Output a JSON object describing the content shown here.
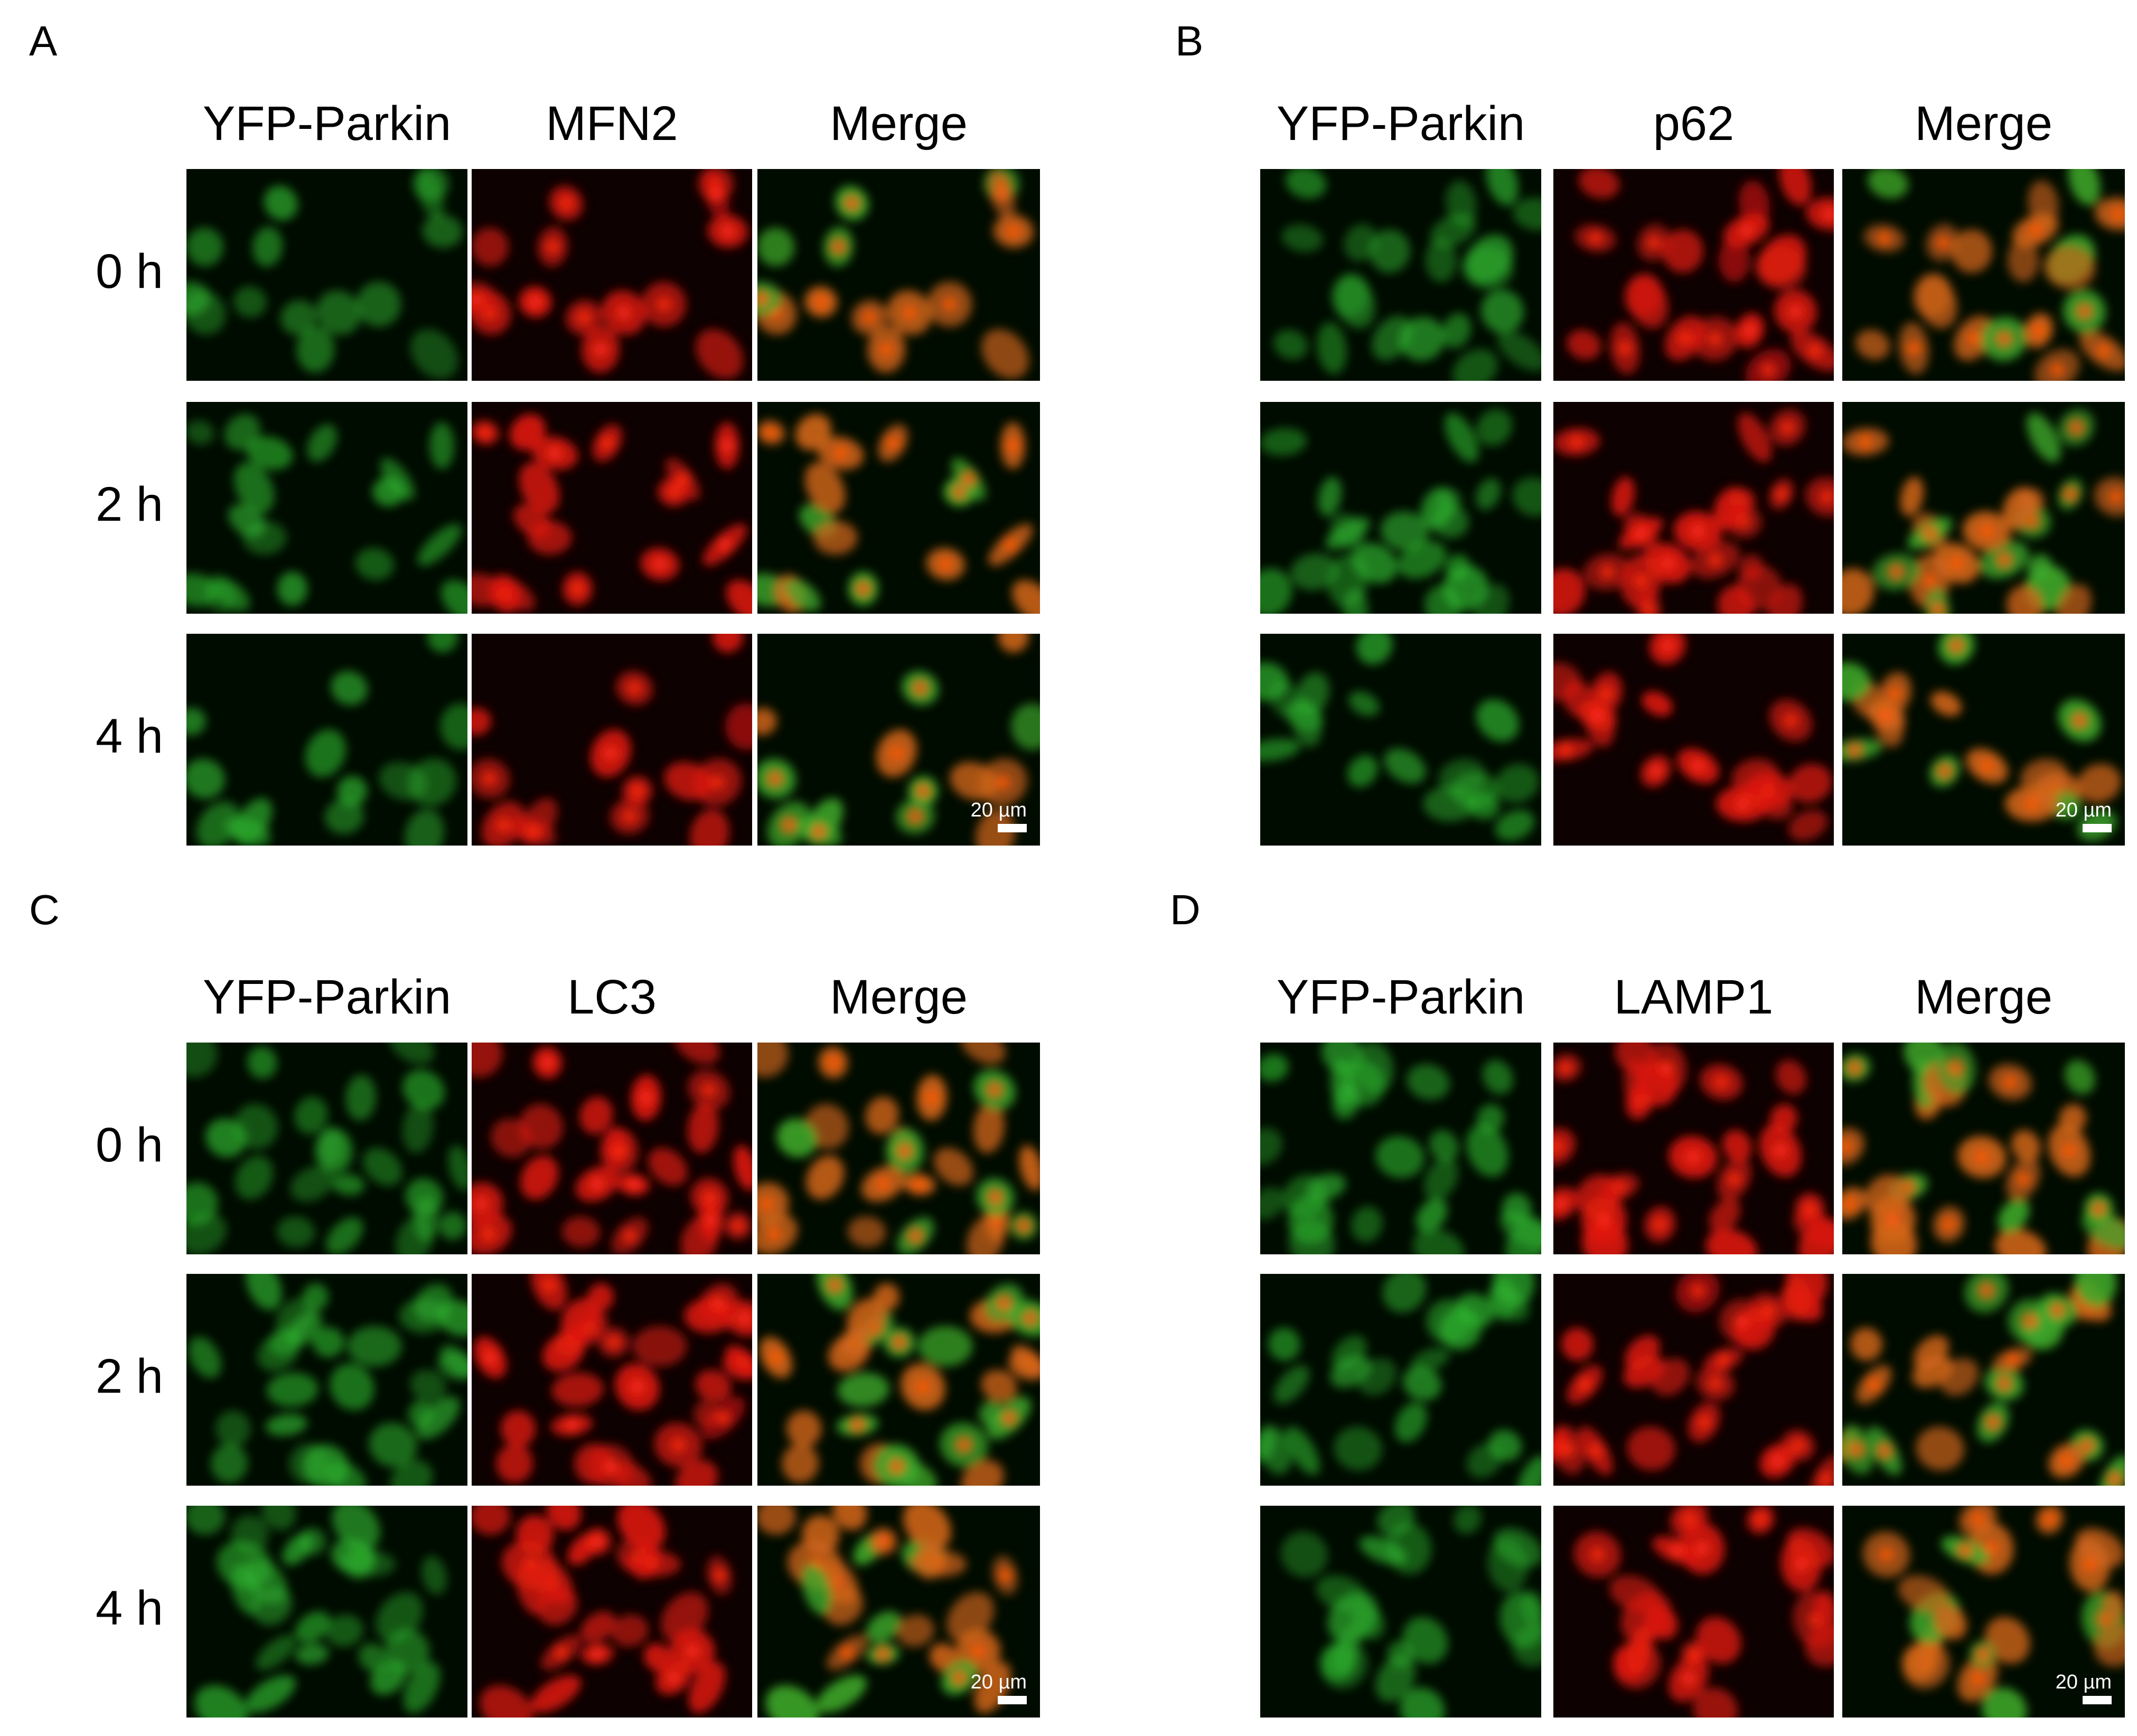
{
  "panels": [
    {
      "letter": "A",
      "columns": [
        "YFP-Parkin",
        "MFN2",
        "Merge"
      ],
      "rows": [
        "0 h",
        "2 h",
        "4 h"
      ],
      "scale_bar": "20 µm"
    },
    {
      "letter": "B",
      "columns": [
        "YFP-Parkin",
        "p62",
        "Merge"
      ],
      "scale_bar": "20 µm"
    },
    {
      "letter": "C",
      "columns": [
        "YFP-Parkin",
        "LC3",
        "Merge"
      ],
      "rows": [
        "0 h",
        "2 h",
        "4 h"
      ],
      "scale_bar": "20 µm"
    },
    {
      "letter": "D",
      "columns": [
        "YFP-Parkin",
        "LAMP1",
        "Merge"
      ],
      "scale_bar": "20 µm"
    }
  ]
}
